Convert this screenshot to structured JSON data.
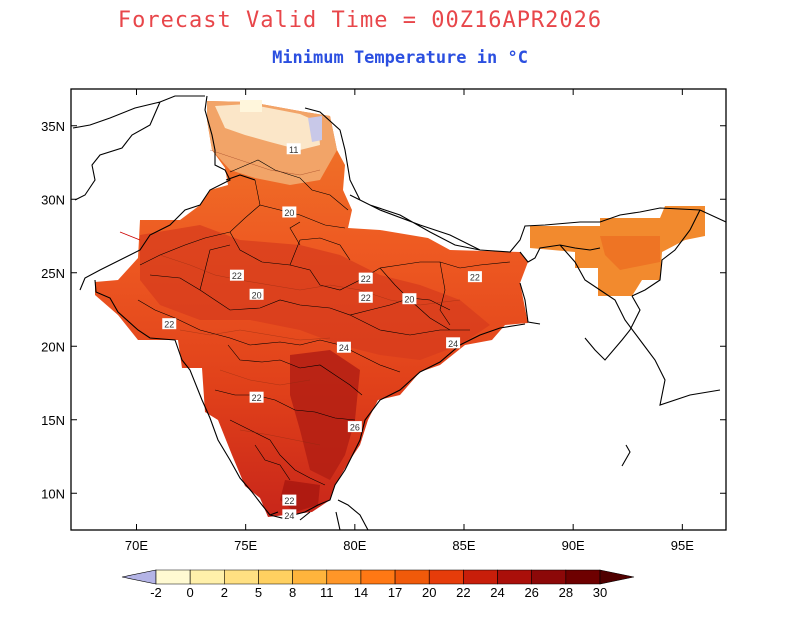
{
  "header": {
    "title": "Forecast Valid Time = 00Z16APR2026",
    "subtitle": "Minimum Temperature in °C"
  },
  "map": {
    "lon_range": [
      67,
      97
    ],
    "lat_range": [
      7.5,
      37.5
    ],
    "lon_ticks": [
      "70E",
      "75E",
      "80E",
      "85E",
      "90E",
      "95E"
    ],
    "lat_ticks": [
      "10N",
      "15N",
      "20N",
      "25N",
      "30N",
      "35N"
    ],
    "contour_labels": [
      {
        "text": "11",
        "lon": 77.2,
        "lat": 33.4
      },
      {
        "text": "20",
        "lon": 77.0,
        "lat": 29.1
      },
      {
        "text": "22",
        "lon": 74.6,
        "lat": 24.8
      },
      {
        "text": "20",
        "lon": 75.5,
        "lat": 23.5
      },
      {
        "text": "22",
        "lon": 71.5,
        "lat": 21.5
      },
      {
        "text": "22",
        "lon": 80.5,
        "lat": 24.6
      },
      {
        "text": "22",
        "lon": 80.5,
        "lat": 23.3
      },
      {
        "text": "20",
        "lon": 82.5,
        "lat": 23.2
      },
      {
        "text": "22",
        "lon": 85.5,
        "lat": 24.7
      },
      {
        "text": "24",
        "lon": 84.5,
        "lat": 20.2
      },
      {
        "text": "24",
        "lon": 79.5,
        "lat": 19.9
      },
      {
        "text": "22",
        "lon": 75.5,
        "lat": 16.5
      },
      {
        "text": "26",
        "lon": 80.0,
        "lat": 14.5
      },
      {
        "text": "22",
        "lon": 77.0,
        "lat": 9.5
      },
      {
        "text": "24",
        "lon": 77.0,
        "lat": 8.5
      }
    ]
  },
  "colorbar": {
    "labels": [
      "-2",
      "0",
      "2",
      "5",
      "8",
      "11",
      "14",
      "17",
      "20",
      "22",
      "24",
      "26",
      "28",
      "30"
    ],
    "colors": [
      "#b4b4e6",
      "#fffad2",
      "#fff0aa",
      "#ffe082",
      "#ffd060",
      "#ffb43c",
      "#ff9628",
      "#ff7814",
      "#f05a0a",
      "#e63c0a",
      "#c81e0a",
      "#aa0f0a",
      "#8c0808",
      "#6e0000",
      "#500000"
    ]
  }
}
